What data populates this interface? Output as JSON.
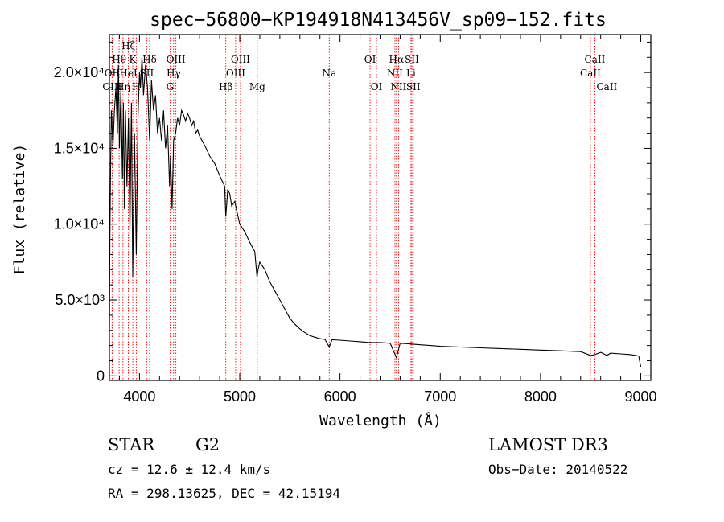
{
  "chart_data": {
    "type": "line",
    "title": "spec−56800−KP194918N413456V_sp09−152.fits",
    "xlabel": "Wavelength (Å)",
    "ylabel": "Flux (relative)",
    "xlim": [
      3700,
      9100
    ],
    "ylim": [
      -300,
      22500
    ],
    "x_ticks": [
      {
        "value": 4000,
        "label": "4000"
      },
      {
        "value": 5000,
        "label": "5000"
      },
      {
        "value": 6000,
        "label": "6000"
      },
      {
        "value": 7000,
        "label": "7000"
      },
      {
        "value": 8000,
        "label": "8000"
      },
      {
        "value": 9000,
        "label": "9000"
      }
    ],
    "y_ticks": [
      {
        "value": 0,
        "label": "0"
      },
      {
        "value": 5000,
        "label": "5.0×10³"
      },
      {
        "value": 10000,
        "label": "1.0×10⁴"
      },
      {
        "value": 15000,
        "label": "1.5×10⁴"
      },
      {
        "value": 20000,
        "label": "2.0×10⁴"
      }
    ],
    "series": [
      {
        "name": "spectrum",
        "x": [
          3700,
          3705,
          3712,
          3720,
          3735,
          3750,
          3765,
          3780,
          3790,
          3800,
          3815,
          3830,
          3840,
          3850,
          3860,
          3875,
          3890,
          3905,
          3920,
          3933,
          3950,
          3968,
          3985,
          4000,
          4010,
          4025,
          4040,
          4060,
          4080,
          4101,
          4120,
          4140,
          4160,
          4180,
          4200,
          4220,
          4240,
          4260,
          4280,
          4300,
          4310,
          4325,
          4340,
          4360,
          4380,
          4400,
          4420,
          4440,
          4460,
          4480,
          4500,
          4520,
          4540,
          4560,
          4580,
          4600,
          4650,
          4700,
          4750,
          4800,
          4850,
          4861,
          4880,
          4900,
          4920,
          4950,
          5000,
          5050,
          5100,
          5150,
          5172,
          5183,
          5200,
          5250,
          5300,
          5350,
          5400,
          5450,
          5500,
          5550,
          5600,
          5650,
          5700,
          5750,
          5800,
          5850,
          5893,
          5920,
          6000,
          6100,
          6200,
          6300,
          6400,
          6500,
          6563,
          6600,
          6700,
          6800,
          6900,
          7000,
          7200,
          7400,
          7600,
          7800,
          8000,
          8200,
          8400,
          8498,
          8542,
          8600,
          8662,
          8700,
          8800,
          8900,
          8950,
          8980,
          9000
        ],
        "y": [
          3000,
          9000,
          14000,
          17500,
          15000,
          17500,
          19000,
          16000,
          20500,
          15000,
          19000,
          13000,
          18000,
          11000,
          17500,
          12500,
          17000,
          9500,
          18000,
          6500,
          16000,
          8000,
          17000,
          20000,
          19000,
          21000,
          18500,
          20500,
          19000,
          15500,
          19500,
          17500,
          18500,
          16000,
          17000,
          15500,
          17500,
          15000,
          16500,
          12500,
          14500,
          11000,
          15500,
          16000,
          17000,
          16500,
          17500,
          17200,
          16800,
          17300,
          17000,
          16500,
          16800,
          16000,
          16200,
          15800,
          15200,
          14500,
          14000,
          13200,
          12500,
          10500,
          12300,
          12000,
          11200,
          11500,
          10000,
          9500,
          8800,
          8200,
          6500,
          7000,
          7500,
          7000,
          6200,
          5600,
          5000,
          4400,
          3800,
          3400,
          3100,
          2850,
          2650,
          2550,
          2450,
          2400,
          1900,
          2380,
          2350,
          2300,
          2250,
          2200,
          2200,
          2150,
          1200,
          2150,
          2100,
          2050,
          2000,
          1950,
          1900,
          1850,
          1800,
          1750,
          1700,
          1650,
          1600,
          1350,
          1400,
          1550,
          1350,
          1500,
          1450,
          1400,
          1350,
          1300,
          600
        ]
      }
    ],
    "spectral_lines": [
      {
        "label": "Hθ",
        "wavelength": 3797,
        "row": 1
      },
      {
        "label": "OII",
        "wavelength": 3727,
        "row": 2
      },
      {
        "label": "OIII",
        "wavelength": 3727,
        "row": 3
      },
      {
        "label": "HeI",
        "wavelength": 3889,
        "row": 2
      },
      {
        "label": "Hη",
        "wavelength": 3835,
        "row": 3
      },
      {
        "label": "K",
        "wavelength": 3933,
        "row": 1
      },
      {
        "label": "Hζ",
        "wavelength": 3889,
        "row": 0
      },
      {
        "label": "SII",
        "wavelength": 4072,
        "row": 2
      },
      {
        "label": "H",
        "wavelength": 3968,
        "row": 3
      },
      {
        "label": "Hδ",
        "wavelength": 4101,
        "row": 1
      },
      {
        "label": "OIII",
        "wavelength": 4363,
        "row": 1
      },
      {
        "label": "Hγ",
        "wavelength": 4340,
        "row": 2
      },
      {
        "label": "G",
        "wavelength": 4305,
        "row": 3
      },
      {
        "label": "Hβ",
        "wavelength": 4861,
        "row": 3
      },
      {
        "label": "OIII",
        "wavelength": 5007,
        "row": 1
      },
      {
        "label": "OIII",
        "wavelength": 4959,
        "row": 2
      },
      {
        "label": "Mg",
        "wavelength": 5175,
        "row": 3
      },
      {
        "label": "Na",
        "wavelength": 5893,
        "row": 2
      },
      {
        "label": "OI",
        "wavelength": 6300,
        "row": 1
      },
      {
        "label": "OI",
        "wavelength": 6364,
        "row": 3
      },
      {
        "label": "Hα",
        "wavelength": 6563,
        "row": 1
      },
      {
        "label": "NII",
        "wavelength": 6548,
        "row": 2
      },
      {
        "label": "NII",
        "wavelength": 6584,
        "row": 3
      },
      {
        "label": "SII",
        "wavelength": 6717,
        "row": 1
      },
      {
        "label": "Li",
        "wavelength": 6708,
        "row": 2
      },
      {
        "label": "SII",
        "wavelength": 6731,
        "row": 3
      },
      {
        "label": "CaII",
        "wavelength": 8542,
        "row": 1
      },
      {
        "label": "CaII",
        "wavelength": 8498,
        "row": 2
      },
      {
        "label": "CaII",
        "wavelength": 8662,
        "row": 3
      }
    ]
  },
  "info": {
    "object_class": "STAR",
    "subclass": "G2",
    "survey": "LAMOST DR3",
    "cz": "cz = 12.6 ± 12.4 km/s",
    "obs_date": "Obs−Date: 20140522",
    "coords": "RA = 298.13625, DEC =  42.15194"
  },
  "colors": {
    "line": "#000000",
    "marker": "#ff0000",
    "background": "#ffffff"
  }
}
